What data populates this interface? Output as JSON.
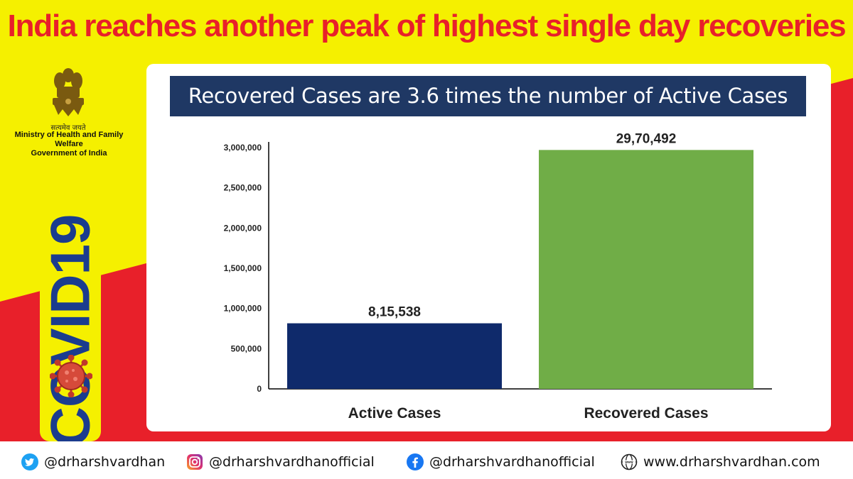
{
  "headline": "India reaches another peak of highest single day recoveries",
  "emblem": {
    "icon": "ashoka-emblem-icon",
    "motto": "सत्यमेव जयते",
    "ministry_line1": "Ministry of Health and Family Welfare",
    "ministry_line2": "Government of India"
  },
  "side_label": "COVID19",
  "banner": "Recovered Cases are 3.6 times the number of  Active Cases",
  "chart_data": {
    "type": "bar",
    "title": "Recovered Cases are 3.6 times the number of  Active Cases",
    "categories": [
      "Active Cases",
      "Recovered Cases"
    ],
    "values": [
      815538,
      2970492
    ],
    "data_labels": [
      "8,15,538",
      "29,70,492"
    ],
    "bar_colors": [
      "#0f2a6b",
      "#70ad47"
    ],
    "ylim": [
      0,
      3000000
    ],
    "yticks": [
      0,
      500000,
      1000000,
      1500000,
      2000000,
      2500000,
      3000000
    ],
    "ytick_labels": [
      "0",
      "500,000",
      "1,000,000",
      "1,500,000",
      "2,000,000",
      "2,500,000",
      "3,000,000"
    ],
    "grid": false,
    "legend": "none"
  },
  "colors": {
    "background_yellow": "#f5f000",
    "background_red": "#e8202a",
    "headline_red": "#e8202a",
    "banner_navy": "#1f3864",
    "covid_blue": "#1b3c8e"
  },
  "footer": [
    {
      "icon": "twitter-icon",
      "text": "@drharshvardhan"
    },
    {
      "icon": "instagram-icon",
      "text": "@drharshvardhanofficial"
    },
    {
      "icon": "facebook-icon",
      "text": "@drharshvardhanofficial"
    },
    {
      "icon": "globe-icon",
      "text": "www.drharshvardhan.com"
    }
  ]
}
